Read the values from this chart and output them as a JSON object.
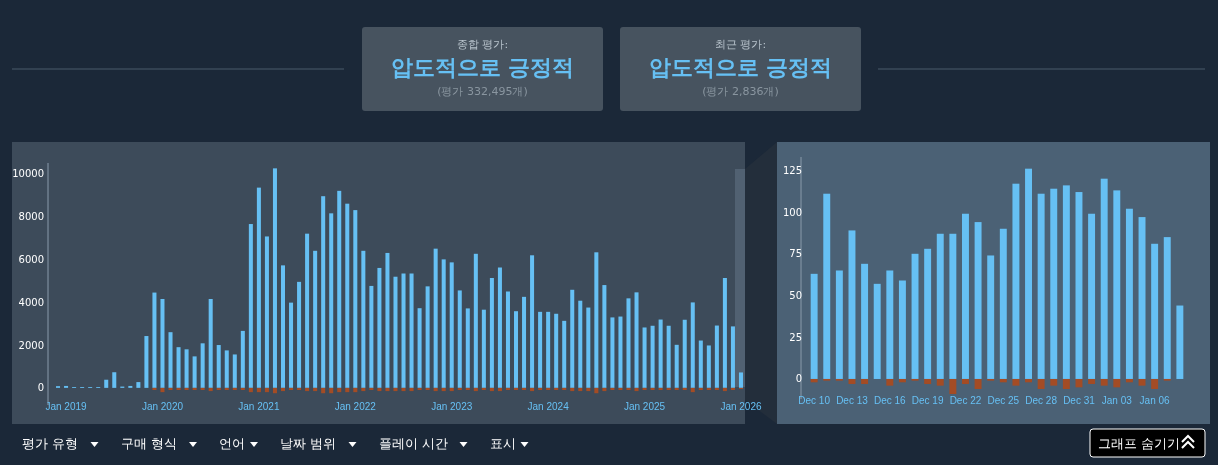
{
  "chart_data": [
    {
      "type": "other",
      "title": "종합 평가:",
      "subtitle": "압도적으로 긍정적",
      "annotations": [
        "(평가 332,495개)"
      ]
    },
    {
      "type": "other",
      "title": "최근 평가:",
      "subtitle": "압도적으로 긍정적",
      "annotations": [
        "(평가 2,836개)"
      ]
    },
    {
      "type": "bar",
      "stacked": true,
      "categories": [
        null,
        "Jan 2019",
        null,
        null,
        null,
        null,
        null,
        null,
        null,
        null,
        null,
        null,
        null,
        "Jan 2020",
        null,
        null,
        null,
        null,
        null,
        null,
        null,
        null,
        null,
        null,
        null,
        "Jan 2021",
        null,
        null,
        null,
        null,
        null,
        null,
        null,
        null,
        null,
        null,
        null,
        "Jan 2022",
        null,
        null,
        null,
        null,
        null,
        null,
        null,
        null,
        null,
        null,
        null,
        "Jan 2023",
        null,
        null,
        null,
        null,
        null,
        null,
        null,
        null,
        null,
        null,
        null,
        "Jan 2024",
        null,
        null,
        null,
        null,
        null,
        null,
        null,
        null,
        null,
        null,
        null,
        "Jan 2025",
        null,
        null,
        null,
        null,
        null,
        null,
        null,
        null,
        null,
        null,
        null,
        "Jan 2026"
      ],
      "series": [
        {
          "color": "#66c0f4",
          "values": [
            80,
            90,
            40,
            40,
            40,
            40,
            380,
            730,
            60,
            90,
            270,
            2420,
            4450,
            4150,
            2600,
            1900,
            1800,
            1470,
            2080,
            4150,
            2000,
            1750,
            1560,
            2660,
            7650,
            9350,
            7070,
            10250,
            5720,
            3980,
            4950,
            7200,
            6400,
            8950,
            8150,
            9200,
            8600,
            8300,
            6400,
            4760,
            5600,
            6300,
            5190,
            5340,
            5340,
            3720,
            4740,
            6500,
            6000,
            5860,
            4550,
            3710,
            6260,
            3650,
            5130,
            5620,
            4500,
            3580,
            4250,
            6190,
            3550,
            3550,
            3460,
            3130,
            4580,
            4070,
            3750,
            6330,
            4800,
            3290,
            3330,
            4180,
            4460,
            2820,
            2900,
            3190,
            2900,
            2010,
            3180,
            3990,
            2210,
            1980,
            2910,
            5130,
            2870,
            720
          ]
        },
        {
          "color": "#a34c25",
          "values": [
            0,
            0,
            0,
            0,
            0,
            0,
            0,
            0,
            0,
            0,
            0,
            0,
            -100,
            -200,
            -100,
            -100,
            -100,
            -100,
            -100,
            -150,
            -100,
            -100,
            -100,
            -100,
            -200,
            -200,
            -200,
            -250,
            -150,
            -100,
            -100,
            -150,
            -150,
            -250,
            -250,
            -200,
            -200,
            -200,
            -150,
            -100,
            -150,
            -150,
            -150,
            -150,
            -150,
            -100,
            -100,
            -150,
            -150,
            -150,
            -100,
            -100,
            -150,
            -100,
            -150,
            -150,
            -100,
            -100,
            -100,
            -150,
            -100,
            -100,
            -100,
            -100,
            -150,
            -150,
            -150,
            -250,
            -150,
            -100,
            -100,
            -100,
            -150,
            -100,
            -100,
            -100,
            -100,
            -100,
            -100,
            -200,
            -100,
            -100,
            -100,
            -150,
            -100,
            -50
          ]
        }
      ],
      "ylim": [
        -800,
        10500
      ],
      "yticks": [
        0,
        2000,
        4000,
        6000,
        8000,
        10000
      ]
    },
    {
      "type": "bar",
      "stacked": true,
      "categories": [
        "Dec 10",
        null,
        null,
        "Dec 13",
        null,
        null,
        "Dec 16",
        null,
        null,
        "Dec 19",
        null,
        null,
        "Dec 22",
        null,
        null,
        "Dec 25",
        null,
        null,
        "Dec 28",
        null,
        null,
        "Dec 31",
        null,
        null,
        "Jan 03",
        null,
        null,
        "Jan 06",
        null,
        null
      ],
      "series": [
        {
          "color": "#66c0f4",
          "values": [
            63,
            111,
            65,
            89,
            69,
            57,
            65,
            59,
            75,
            78,
            87,
            87,
            99,
            94,
            74,
            90,
            117,
            126,
            111,
            114,
            116,
            112,
            99,
            120,
            113,
            102,
            97,
            81,
            85,
            44
          ]
        },
        {
          "color": "#a34c25",
          "values": [
            -2,
            -1,
            -1,
            -3,
            -3,
            0,
            -4,
            -2,
            -1,
            -3,
            -4,
            -9,
            -3,
            -6,
            -1,
            -2,
            -4,
            -2,
            -6,
            -4,
            -6,
            -5,
            -3,
            -4,
            -5,
            -2,
            -4,
            -6,
            -1,
            0
          ]
        }
      ],
      "ylim": [
        -12,
        133
      ],
      "yticks": [
        0,
        25,
        50,
        75,
        100,
        125
      ]
    },
    {
      "type": "other",
      "annotations": [
        "평가 유형",
        "구매 형식",
        "언어",
        "날짜 범위",
        "플레이 시간",
        "표시",
        "그래프 숨기기"
      ]
    }
  ]
}
